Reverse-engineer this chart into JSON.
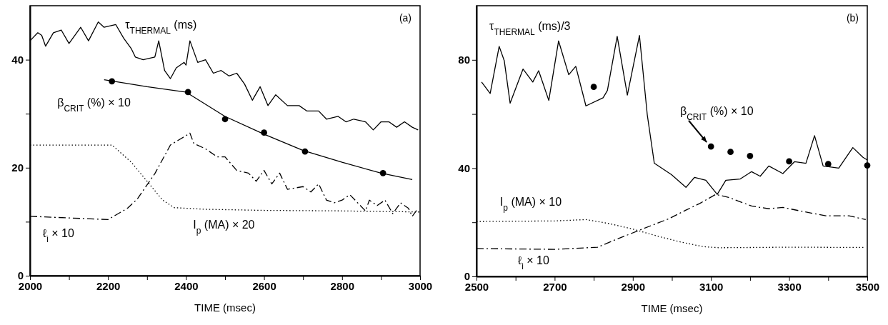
{
  "chart_data": [
    {
      "type": "line",
      "xlabel": "TIME (msec)",
      "annotations": [
        "(a)"
      ],
      "xlim": [
        2000,
        3000
      ],
      "xticks": [
        2000,
        {
          "value": 2100,
          "label": null
        },
        2200,
        {
          "value": 2300,
          "label": null
        },
        2400,
        {
          "value": 2500,
          "label": null
        },
        2600,
        {
          "value": 2700,
          "label": null
        },
        2800,
        {
          "value": 2900,
          "label": null
        },
        3000
      ],
      "ylim": [
        0,
        50
      ],
      "yticks": [
        0,
        {
          "value": 10,
          "label": null
        },
        20,
        {
          "value": 30,
          "label": null
        },
        40
      ],
      "series": [
        {
          "name": "τ$_{THERMAL}$ (ms)",
          "color": "#000000",
          "line_style": "solid",
          "marker": "none",
          "x": [
            2000,
            2020,
            2030,
            2040,
            2060,
            2080,
            2100,
            2130,
            2150,
            2175,
            2190,
            2220,
            2240,
            2260,
            2270,
            2290,
            2320,
            2330,
            2345,
            2360,
            2375,
            2395,
            2400,
            2410,
            2430,
            2450,
            2470,
            2490,
            2510,
            2530,
            2550,
            2570,
            2590,
            2610,
            2630,
            2660,
            2690,
            2710,
            2740,
            2760,
            2790,
            2810,
            2830,
            2860,
            2880,
            2900,
            2920,
            2940,
            2960,
            2980,
            2995
          ],
          "values": [
            43.5,
            45,
            44.5,
            42.5,
            45,
            45.5,
            43,
            46,
            43.5,
            47,
            46,
            46.5,
            44,
            42,
            40.5,
            40,
            40.5,
            43.5,
            38,
            36.5,
            38.5,
            39.5,
            39,
            43.5,
            39.5,
            40,
            37.5,
            38,
            37,
            37.5,
            35.5,
            32.5,
            35,
            31.5,
            33.5,
            31.5,
            31.5,
            30.5,
            30.5,
            29,
            29.5,
            28.5,
            29,
            28.5,
            27,
            28.5,
            28.5,
            27.5,
            28.5,
            27.5,
            27
          ]
        },
        {
          "color": "#000000",
          "line_style": "solid",
          "marker": "none",
          "x": [
            2190,
            2300,
            2400,
            2500,
            2600,
            2700,
            2800,
            2900,
            2980
          ],
          "values": [
            36.3,
            35,
            34,
            29.5,
            26.2,
            23.2,
            21,
            19,
            17.8
          ]
        },
        {
          "name": "β$_{CRIT}$ (%) × 10",
          "type": "scatter",
          "color": "#000000",
          "marker": "circle",
          "x": [
            2210,
            2405,
            2500,
            2600,
            2705,
            2905
          ],
          "values": [
            36,
            34,
            29,
            26.5,
            23,
            19
          ]
        },
        {
          "name": "ℓ$_{i}$ × 10",
          "color": "#000000",
          "line_style": "dashed",
          "marker": "none",
          "x": [
            2000,
            2100,
            2200,
            2250,
            2275,
            2320,
            2360,
            2410,
            2420,
            2450,
            2480,
            2500,
            2530,
            2560,
            2580,
            2600,
            2620,
            2640,
            2660,
            2700,
            2720,
            2740,
            2760,
            2780,
            2800,
            2820,
            2840,
            2860,
            2870,
            2890,
            2910,
            2930,
            2950,
            2970,
            2980,
            2995
          ],
          "values": [
            11,
            10.7,
            10.4,
            12.5,
            14.2,
            18.9,
            24.2,
            26.4,
            24.5,
            23.5,
            22,
            22,
            19.5,
            19,
            17.5,
            19.5,
            17,
            19,
            16,
            16.5,
            15.5,
            17,
            14,
            13.5,
            14,
            15,
            13.5,
            12,
            14,
            13,
            14,
            11.5,
            13.5,
            12.5,
            11,
            12.5
          ]
        },
        {
          "name": "I$_{p}$ (MA) × 20",
          "color": "#000000",
          "line_style": "dotted",
          "marker": "none",
          "x": [
            2000,
            2210,
            2260,
            2300,
            2340,
            2370,
            2450,
            2600,
            2800,
            3000
          ],
          "values": [
            24.2,
            24.2,
            21,
            17.5,
            14,
            12.6,
            12.3,
            12.1,
            12,
            11.8
          ]
        }
      ]
    },
    {
      "type": "line",
      "xlabel": "TIME (msec)",
      "annotations": [
        "(b)"
      ],
      "xlim": [
        2500,
        3500
      ],
      "xticks": [
        2500,
        {
          "value": 2600,
          "label": null
        },
        2700,
        {
          "value": 2800,
          "label": null
        },
        2900,
        {
          "value": 3000,
          "label": null
        },
        3100,
        {
          "value": 3200,
          "label": null
        },
        3300,
        {
          "value": 3400,
          "label": null
        },
        3500
      ],
      "ylim": [
        0,
        100
      ],
      "yticks": [
        0,
        {
          "value": 20,
          "label": null
        },
        40,
        {
          "value": 60,
          "label": null
        },
        80
      ],
      "series": [
        {
          "name": "τ$_{THERMAL}$ (ms)/3",
          "color": "#000000",
          "line_style": "solid",
          "marker": "none",
          "x": [
            2513,
            2535,
            2558,
            2571,
            2586,
            2619,
            2644,
            2659,
            2685,
            2710,
            2736,
            2754,
            2780,
            2824,
            2835,
            2860,
            2886,
            2917,
            2937,
            2955,
            2999,
            3036,
            3058,
            3087,
            3116,
            3138,
            3175,
            3204,
            3226,
            3248,
            3284,
            3314,
            3343,
            3365,
            3387,
            3427,
            3463,
            3489,
            3500
          ],
          "values": [
            71.8,
            67.6,
            85,
            79.7,
            64,
            76.6,
            71.8,
            76,
            65,
            87,
            74.5,
            77.6,
            63,
            66,
            68.7,
            88.7,
            67,
            89,
            59.7,
            41.8,
            37.6,
            32.9,
            36.6,
            35.5,
            30.3,
            35.5,
            36,
            38.7,
            37,
            40.8,
            38,
            42.4,
            41.8,
            52,
            40.8,
            40,
            47.6,
            44,
            43
          ]
        },
        {
          "name": "β$_{CRIT}$ (%) × 10",
          "type": "scatter",
          "color": "#000000",
          "marker": "circle",
          "x": [
            2800,
            3100,
            3150,
            3200,
            3300,
            3400,
            3500
          ],
          "values": [
            70,
            48,
            46,
            44.5,
            42.5,
            41.5,
            41
          ]
        },
        {
          "name": "I$_{p}$ (MA) × 10",
          "color": "#000000",
          "line_style": "dotted",
          "marker": "none",
          "x": [
            2500,
            2700,
            2780,
            2840,
            2900,
            2960,
            3020,
            3080,
            3120,
            3300,
            3490
          ],
          "values": [
            20.3,
            20.5,
            21,
            19.5,
            17.5,
            15,
            12.8,
            11,
            10.6,
            10.8,
            10.7
          ]
        },
        {
          "name": "ℓ$_{i}$ × 10",
          "color": "#000000",
          "line_style": "dashed",
          "marker": "none",
          "x": [
            2500,
            2700,
            2810,
            2853,
            2926,
            2992,
            3036,
            3072,
            3112,
            3145,
            3204,
            3248,
            3284,
            3335,
            3394,
            3453,
            3496
          ],
          "values": [
            10.3,
            10,
            10.8,
            13.4,
            17.6,
            21.3,
            24.5,
            27,
            30.3,
            29.2,
            26,
            25,
            25.5,
            24,
            22.4,
            22.4,
            21
          ]
        }
      ]
    }
  ]
}
